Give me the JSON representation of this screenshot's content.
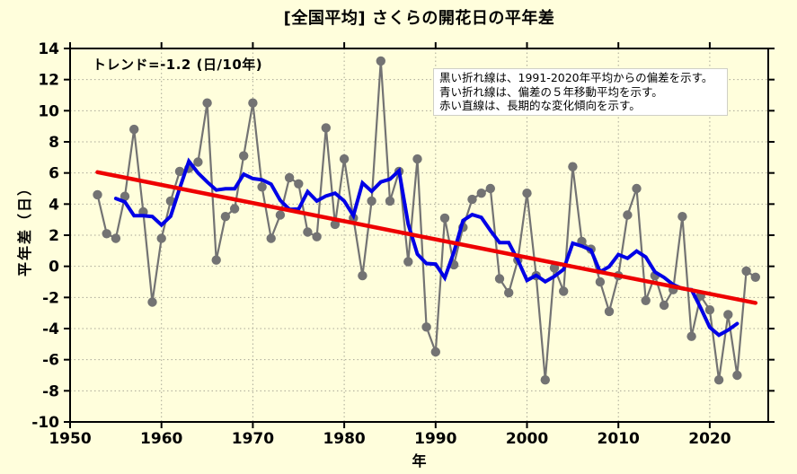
{
  "title": "[全国平均] さくらの開花日の平年差",
  "trend_label": "トレンド=-1.2 (日/10年)",
  "annotation_box": {
    "line1": "黒い折れ線は、1991-2020年平均からの偏差を示す。",
    "line2": "青い折れ線は、偏差の５年移動平均を示す。",
    "line3": "赤い直線は、長期的な変化傾向を示す。"
  },
  "colors": {
    "background": "#FFFEDC",
    "plot_border": "#000000",
    "grid": "#A9A897",
    "annual_line": "#737373",
    "annual_marker": "#737373",
    "moving_avg_line": "#0000E6",
    "trend_line": "#EE0000",
    "annotation_bg": "#FFFFFF",
    "text": "#000000"
  },
  "chart_data": {
    "type": "line",
    "title": "[全国平均] さくらの開花日の平年差",
    "xlabel": "年",
    "ylabel": "平年差（日）",
    "xlim": [
      1950,
      2026.4
    ],
    "ylim": [
      -10,
      14
    ],
    "x_ticks": [
      1950,
      1960,
      1970,
      1980,
      1990,
      2000,
      2010,
      2020
    ],
    "y_ticks": [
      14,
      12,
      10,
      8,
      6,
      4,
      2,
      0,
      -2,
      -4,
      -6,
      -8,
      -10
    ],
    "x_grid": [
      1960,
      1970,
      1980,
      1990,
      2000,
      2010,
      2020
    ],
    "y_grid": [
      12,
      10,
      8,
      6,
      4,
      2,
      0,
      -2,
      -4,
      -6,
      -8
    ],
    "grid": true,
    "trend_per_decade": -1.2,
    "series": [
      {
        "name": "annual_deviation_from_1991_2020_normal",
        "style": "line+markers",
        "color": "#737373",
        "x": [
          1953,
          1954,
          1955,
          1956,
          1957,
          1958,
          1959,
          1960,
          1961,
          1962,
          1963,
          1964,
          1965,
          1966,
          1967,
          1968,
          1969,
          1970,
          1971,
          1972,
          1973,
          1974,
          1975,
          1976,
          1977,
          1978,
          1979,
          1980,
          1981,
          1982,
          1983,
          1984,
          1985,
          1986,
          1987,
          1988,
          1989,
          1990,
          1991,
          1992,
          1993,
          1994,
          1995,
          1996,
          1997,
          1998,
          1999,
          2000,
          2001,
          2002,
          2003,
          2004,
          2005,
          2006,
          2007,
          2008,
          2009,
          2010,
          2011,
          2012,
          2013,
          2014,
          2015,
          2016,
          2017,
          2018,
          2019,
          2020,
          2021,
          2022,
          2023,
          2024,
          2025
        ],
        "y": [
          4.6,
          2.1,
          1.8,
          4.5,
          8.8,
          3.5,
          -2.3,
          1.8,
          4.2,
          6.1,
          6.3,
          6.7,
          10.5,
          0.4,
          3.2,
          3.7,
          7.1,
          10.5,
          5.1,
          1.8,
          3.3,
          5.7,
          5.3,
          2.2,
          1.9,
          8.9,
          2.7,
          6.9,
          3.1,
          -0.6,
          4.2,
          13.2,
          4.2,
          6.1,
          0.3,
          6.9,
          -3.9,
          -5.5,
          3.1,
          0.1,
          2.5,
          4.3,
          4.7,
          5.0,
          -0.8,
          -1.7,
          0.4,
          4.7,
          -0.6,
          -7.3,
          -0.1,
          -1.6,
          6.4,
          1.6,
          1.1,
          -1.0,
          -2.9,
          -0.6,
          3.3,
          5.0,
          -2.2,
          -0.6,
          -2.5,
          -1.5,
          3.2,
          -4.5,
          -1.9,
          -2.8,
          -7.3,
          -3.1,
          -7.0,
          -0.3,
          -0.7
        ]
      },
      {
        "name": "five_year_moving_average",
        "style": "line",
        "color": "#0000E6",
        "x": [
          1955,
          1956,
          1957,
          1958,
          1959,
          1960,
          1961,
          1962,
          1963,
          1964,
          1965,
          1966,
          1967,
          1968,
          1969,
          1970,
          1971,
          1972,
          1973,
          1974,
          1975,
          1976,
          1977,
          1978,
          1979,
          1980,
          1981,
          1982,
          1983,
          1984,
          1985,
          1986,
          1987,
          1988,
          1989,
          1990,
          1991,
          1992,
          1993,
          1994,
          1995,
          1996,
          1997,
          1998,
          1999,
          2000,
          2001,
          2002,
          2003,
          2004,
          2005,
          2006,
          2007,
          2008,
          2009,
          2010,
          2011,
          2012,
          2013,
          2014,
          2015,
          2016,
          2017,
          2018,
          2019,
          2020,
          2021,
          2022,
          2023
        ],
        "y": [
          4.36,
          4.14,
          3.26,
          3.26,
          3.2,
          2.66,
          3.22,
          5.02,
          6.76,
          6.0,
          5.42,
          4.9,
          4.98,
          4.98,
          5.92,
          5.64,
          5.56,
          5.28,
          4.24,
          3.66,
          3.68,
          4.8,
          4.2,
          4.52,
          4.7,
          4.2,
          3.26,
          5.36,
          4.82,
          5.42,
          5.6,
          6.14,
          2.72,
          0.78,
          0.18,
          0.14,
          -0.74,
          0.9,
          2.94,
          3.32,
          3.14,
          2.3,
          1.52,
          1.52,
          0.4,
          -0.9,
          -0.58,
          -0.98,
          -0.64,
          -0.2,
          1.48,
          1.3,
          1.04,
          -0.36,
          -0.02,
          0.76,
          0.52,
          0.98,
          0.6,
          -0.36,
          -0.72,
          -1.18,
          -1.44,
          -1.5,
          -2.66,
          -3.92,
          -4.42,
          -4.1,
          -3.68
        ]
      },
      {
        "name": "long_term_trend",
        "style": "line",
        "color": "#EE0000",
        "x": [
          1953,
          2025
        ],
        "y": [
          6.05,
          -2.35
        ]
      }
    ]
  }
}
